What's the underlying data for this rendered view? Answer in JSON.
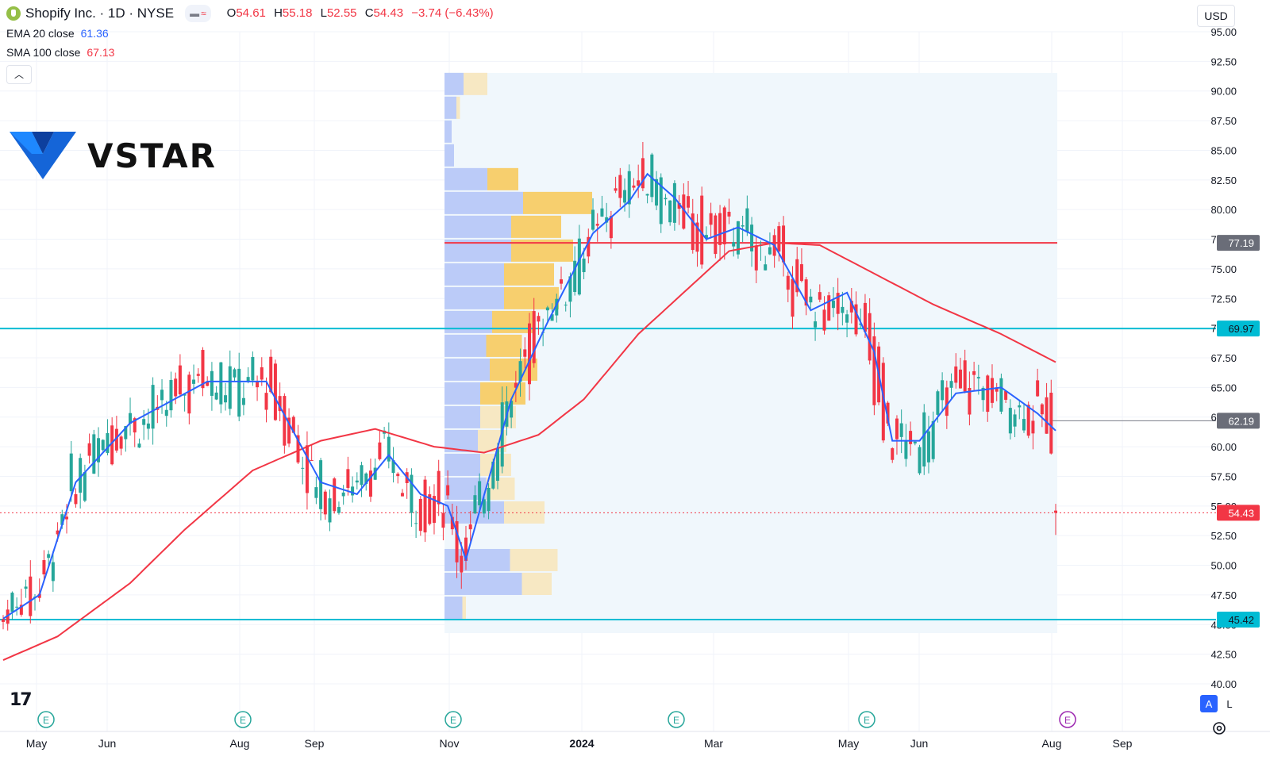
{
  "header": {
    "symbol_title": "Shopify Inc. · 1D · NYSE",
    "ohlc": [
      {
        "key": "O",
        "value": "54.61"
      },
      {
        "key": "H",
        "value": "55.18"
      },
      {
        "key": "L",
        "value": "52.55"
      },
      {
        "key": "C",
        "value": "54.43"
      }
    ],
    "change": "−3.74 (−6.43%)",
    "indicators": [
      {
        "label": "EMA 20 close",
        "value": "61.36"
      },
      {
        "label": "SMA 100 close",
        "value": "67.13"
      }
    ],
    "collapse_icon": "chevron-up-icon",
    "currency": "USD"
  },
  "logo": {
    "text": "VSTAR"
  },
  "colors": {
    "up": "#26a69a",
    "down": "#f23645",
    "ema": "#2962ff",
    "sma": "#f23645",
    "level_line": "#00bcd4",
    "resistance": "#f23645",
    "vp_blue": "#b2c3f7",
    "vp_yellow": "#f7ca5e"
  },
  "chart_data": {
    "type": "candlestick",
    "y_ticks": [
      "40.00",
      "42.50",
      "45.00",
      "47.50",
      "50.00",
      "52.50",
      "55.00",
      "57.50",
      "60.00",
      "62.50",
      "65.00",
      "67.50",
      "70.00",
      "72.50",
      "75.00",
      "77.50",
      "80.00",
      "82.50",
      "85.00",
      "87.50",
      "90.00",
      "92.50",
      "95.00"
    ],
    "ylim": [
      39.5,
      96
    ],
    "x_ticks": [
      "May",
      "Jun",
      "Aug",
      "Sep",
      "Nov",
      "2024",
      "Mar",
      "May",
      "Jun",
      "Aug",
      "Sep"
    ],
    "price_labels": [
      {
        "text": "77.19",
        "value": 77.19,
        "style": "grey"
      },
      {
        "text": "69.97",
        "value": 69.97,
        "style": "cyan"
      },
      {
        "text": "62.19",
        "value": 62.19,
        "style": "grey"
      },
      {
        "text": "54.43",
        "value": 54.43,
        "style": "red"
      },
      {
        "text": "45.42",
        "value": 45.42,
        "style": "cyan"
      }
    ],
    "horizontal_levels": [
      {
        "value": 69.97,
        "color": "cyan"
      },
      {
        "value": 45.42,
        "color": "cyan"
      },
      {
        "value": 77.19,
        "color": "red"
      }
    ],
    "last_price": 54.43,
    "ema_20_approx": [
      [
        0,
        45.5
      ],
      [
        8,
        47.5
      ],
      [
        16,
        57
      ],
      [
        28,
        62
      ],
      [
        45,
        65.5
      ],
      [
        58,
        65.5
      ],
      [
        70,
        57
      ],
      [
        78,
        56
      ],
      [
        85,
        59.3
      ],
      [
        92,
        56
      ],
      [
        98,
        55
      ],
      [
        102,
        50.5
      ],
      [
        112,
        64
      ],
      [
        120,
        70.5
      ],
      [
        130,
        78
      ],
      [
        138,
        80.7
      ],
      [
        142,
        83
      ],
      [
        148,
        81
      ],
      [
        155,
        77.5
      ],
      [
        162,
        78.5
      ],
      [
        170,
        77
      ],
      [
        178,
        71.5
      ],
      [
        186,
        73
      ],
      [
        192,
        68
      ],
      [
        196,
        60.5
      ],
      [
        202,
        60.5
      ],
      [
        210,
        64.5
      ],
      [
        220,
        65
      ],
      [
        228,
        62.8
      ],
      [
        232,
        61.36
      ]
    ],
    "sma_100_approx": [
      [
        0,
        42
      ],
      [
        12,
        44
      ],
      [
        28,
        48.5
      ],
      [
        40,
        53
      ],
      [
        55,
        58
      ],
      [
        70,
        60.5
      ],
      [
        82,
        61.5
      ],
      [
        95,
        60
      ],
      [
        106,
        59.5
      ],
      [
        118,
        61
      ],
      [
        128,
        64
      ],
      [
        140,
        69.5
      ],
      [
        150,
        73
      ],
      [
        160,
        76.5
      ],
      [
        170,
        77.2
      ],
      [
        180,
        77
      ],
      [
        190,
        75
      ],
      [
        205,
        72
      ],
      [
        220,
        69.5
      ],
      [
        232,
        67.13
      ]
    ],
    "events": [
      "E",
      "E",
      "E",
      "E",
      "E",
      "E"
    ]
  }
}
